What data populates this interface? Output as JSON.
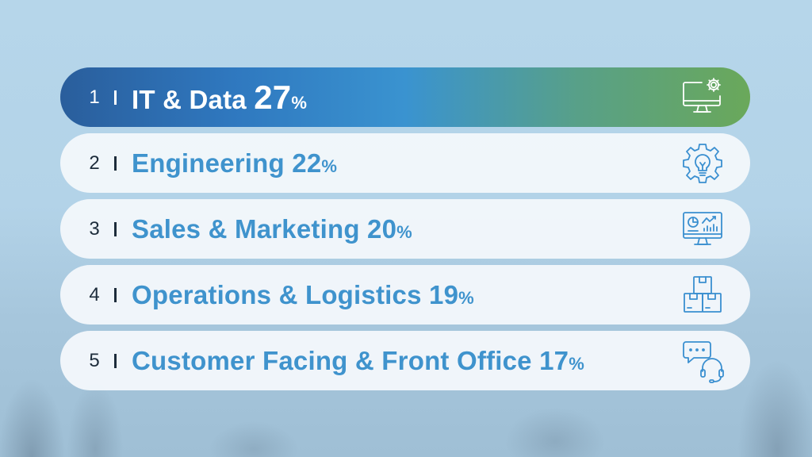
{
  "items": [
    {
      "num": "1",
      "label": "IT & Data",
      "pct": "27",
      "pct_sign": "%",
      "icon": "monitor-gear-icon",
      "active": true
    },
    {
      "num": "2",
      "label": "Engineering",
      "pct": "22",
      "pct_sign": "%",
      "icon": "gear-lightbulb-icon",
      "active": false
    },
    {
      "num": "3",
      "label": "Sales & Marketing",
      "pct": "20",
      "pct_sign": "%",
      "icon": "monitor-analytics-icon",
      "active": false
    },
    {
      "num": "4",
      "label": "Operations & Logistics",
      "pct": "19",
      "pct_sign": "%",
      "icon": "stacked-boxes-icon",
      "active": false
    },
    {
      "num": "5",
      "label": "Customer Facing & Front Office",
      "pct": "17",
      "pct_sign": "%",
      "icon": "chat-headset-icon",
      "active": false
    }
  ],
  "colors": {
    "active_gradient_start": "#2a5e9c",
    "active_gradient_end": "#6aa85a",
    "label_blue": "#3f93cd",
    "number_dark": "#1d2c3b",
    "row_background": "#f3f7fb"
  }
}
